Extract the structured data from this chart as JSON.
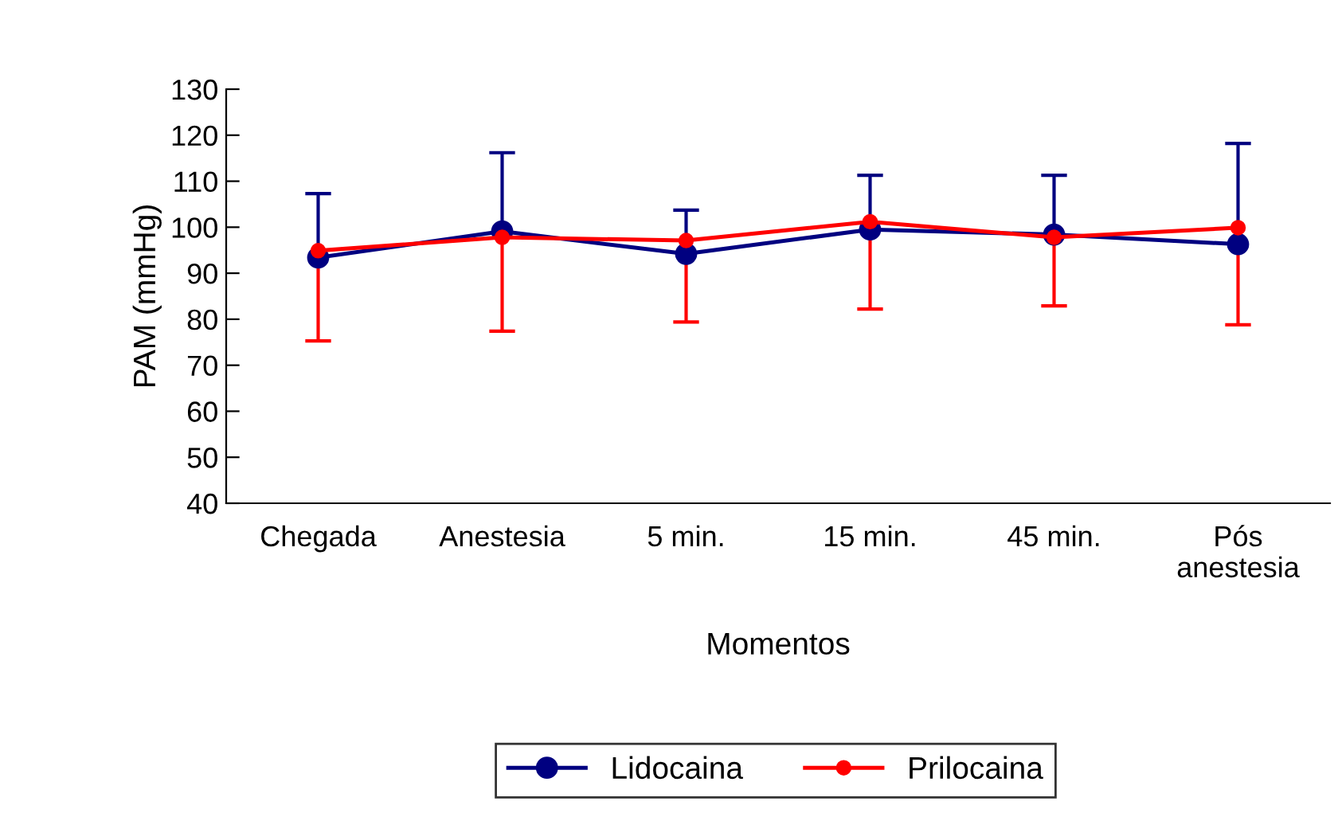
{
  "chart_data": {
    "type": "line",
    "xlabel": "Momentos",
    "ylabel": "PAM (mmHg)",
    "categories": [
      "Chegada",
      "Anestesia",
      "5 min.",
      "15 min.",
      "45 min.",
      "Pós\nanestesia"
    ],
    "series": [
      {
        "name": "Lidocaina",
        "color": "#000080",
        "values": [
          93.4,
          99.1,
          94.2,
          99.5,
          98.4,
          96.3
        ],
        "errors": [
          [
            93.4,
            107.3
          ],
          [
            99.1,
            116.2
          ],
          [
            94.2,
            103.7
          ],
          [
            99.5,
            111.3
          ],
          [
            98.4,
            111.3
          ],
          [
            96.3,
            118.2
          ]
        ]
      },
      {
        "name": "Prilocaina",
        "color": "#ff0000",
        "values": [
          94.9,
          97.8,
          97.1,
          101.2,
          97.8,
          99.9
        ],
        "errors": [
          [
            75.3,
            94.9
          ],
          [
            77.4,
            97.8
          ],
          [
            79.4,
            97.1
          ],
          [
            82.2,
            101.2
          ],
          [
            82.9,
            97.8
          ],
          [
            78.8,
            99.9
          ]
        ]
      }
    ],
    "ylim": [
      40,
      130
    ],
    "yticks": [
      40,
      50,
      60,
      70,
      80,
      90,
      100,
      110,
      120,
      130
    ],
    "marker": "circle",
    "line_style": "solid",
    "grid": false,
    "legend": "bottom"
  }
}
